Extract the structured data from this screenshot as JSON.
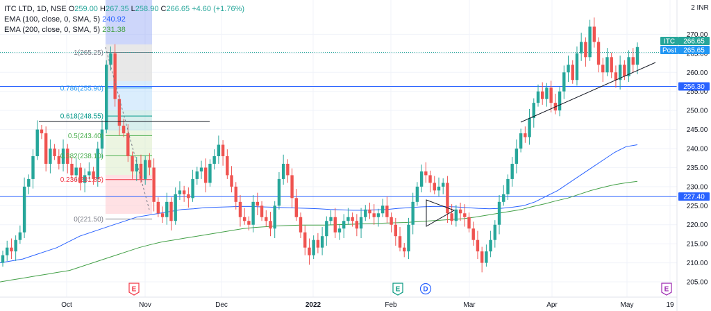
{
  "header": {
    "symbol": "ITC LTD, 1D, NSE",
    "open_label": "O",
    "open": "259.00",
    "high_label": "H",
    "high": "267.35",
    "low_label": "L",
    "low": "258.90",
    "close_label": "C",
    "close": "266.65",
    "change": "+4.60 (+1.76%)",
    "ema100_label": "EMA (100, close, 0, SMA, 5)",
    "ema100_value": "240.92",
    "ema200_label": "EMA (200, close, 0, SMA, 5)",
    "ema200_value": "231.38"
  },
  "currency": "INR",
  "colors": {
    "up": "#26a69a",
    "down": "#ef5350",
    "ema100": "#2962ff",
    "ema200": "#43a047",
    "hline": "#2962ff",
    "grid": "#f0f3fa"
  },
  "price_labels": [
    {
      "text": "ITC",
      "value": "266.65",
      "color": "#26a69a"
    },
    {
      "text": "Post",
      "value": "265.65",
      "color": "#2196f3"
    },
    {
      "text": "",
      "value": "256.30",
      "color": "#2962ff"
    },
    {
      "text": "",
      "value": "227.40",
      "color": "#2962ff"
    }
  ],
  "fib_levels": [
    {
      "label": "1(265.25)",
      "value": 265.25,
      "color": "#787b86"
    },
    {
      "label": "0.786(255.90)",
      "value": 255.9,
      "color": "#2196f3"
    },
    {
      "label": "0.618(248.55)",
      "value": 248.55,
      "color": "#009688"
    },
    {
      "label": "0.5(243.40)",
      "value": 243.4,
      "color": "#4caf50"
    },
    {
      "label": "0.382(238.10)",
      "value": 238.1,
      "color": "#4caf50"
    },
    {
      "label": "0.236(231.85)",
      "value": 231.85,
      "color": "#f23645"
    },
    {
      "label": "0(221.50)",
      "value": 221.5,
      "color": "#787b86"
    }
  ],
  "event_markers": [
    {
      "letter": "E",
      "color": "#f23645",
      "date": "Nov 1"
    },
    {
      "letter": "E",
      "color": "#089981",
      "date": "Feb 3"
    },
    {
      "letter": "D",
      "color": "#2962ff",
      "date": "Feb 24"
    },
    {
      "letter": "E",
      "color": "#9c27b0",
      "date": "May 19"
    }
  ],
  "chart_data": {
    "type": "candlestick",
    "x_labels": [
      "Oct",
      "Nov",
      "Dec",
      "2022",
      "Feb",
      "Mar",
      "Apr",
      "May",
      "19"
    ],
    "y_ticks": [
      205,
      210,
      215,
      220,
      225,
      230,
      235,
      240,
      245,
      250,
      255,
      260,
      265,
      270
    ],
    "ylim": [
      201,
      279
    ],
    "candles": [
      [
        210,
        212
      ],
      [
        212,
        214
      ],
      [
        214,
        213
      ],
      [
        213,
        216
      ],
      [
        216,
        218
      ],
      [
        218,
        230
      ],
      [
        230,
        232
      ],
      [
        232,
        238
      ],
      [
        238,
        245
      ],
      [
        245,
        244
      ],
      [
        244,
        236
      ],
      [
        236,
        240
      ],
      [
        240,
        238
      ],
      [
        238,
        236
      ],
      [
        236,
        240
      ],
      [
        240,
        236
      ],
      [
        236,
        233
      ],
      [
        233,
        235
      ],
      [
        235,
        231
      ],
      [
        231,
        233
      ],
      [
        233,
        234
      ],
      [
        234,
        232
      ],
      [
        232,
        240
      ],
      [
        240,
        245
      ],
      [
        245,
        262
      ],
      [
        262,
        265
      ],
      [
        265,
        253
      ],
      [
        253,
        246
      ],
      [
        246,
        244
      ],
      [
        244,
        238
      ],
      [
        238,
        234
      ],
      [
        234,
        236
      ],
      [
        236,
        232
      ],
      [
        232,
        237
      ],
      [
        237,
        235
      ],
      [
        235,
        226
      ],
      [
        226,
        223
      ],
      [
        223,
        222
      ],
      [
        222,
        226
      ],
      [
        226,
        221
      ],
      [
        221,
        228
      ],
      [
        228,
        229
      ],
      [
        229,
        228
      ],
      [
        228,
        227
      ],
      [
        227,
        232
      ],
      [
        232,
        234
      ],
      [
        234,
        235
      ],
      [
        235,
        231
      ],
      [
        231,
        236
      ],
      [
        236,
        238
      ],
      [
        238,
        241
      ],
      [
        241,
        238
      ],
      [
        238,
        233
      ],
      [
        233,
        230
      ],
      [
        230,
        226
      ],
      [
        226,
        222
      ],
      [
        222,
        221
      ],
      [
        221,
        220
      ],
      [
        220,
        226
      ],
      [
        226,
        225
      ],
      [
        225,
        222
      ],
      [
        222,
        221
      ],
      [
        221,
        219
      ],
      [
        219,
        225
      ],
      [
        225,
        232
      ],
      [
        232,
        236
      ],
      [
        236,
        233
      ],
      [
        233,
        227
      ],
      [
        227,
        222
      ],
      [
        222,
        218
      ],
      [
        218,
        214
      ],
      [
        214,
        212
      ],
      [
        212,
        216
      ],
      [
        216,
        214
      ],
      [
        214,
        217
      ],
      [
        217,
        221
      ],
      [
        221,
        222
      ],
      [
        222,
        218
      ],
      [
        218,
        219
      ],
      [
        219,
        221
      ],
      [
        221,
        222
      ],
      [
        222,
        221
      ],
      [
        221,
        219
      ],
      [
        219,
        222
      ],
      [
        222,
        224
      ],
      [
        224,
        223
      ],
      [
        223,
        222
      ],
      [
        222,
        223
      ],
      [
        223,
        225
      ],
      [
        225,
        222
      ],
      [
        222,
        220
      ],
      [
        220,
        217
      ],
      [
        217,
        214
      ],
      [
        214,
        213
      ],
      [
        213,
        220
      ],
      [
        220,
        226
      ],
      [
        226,
        230
      ],
      [
        230,
        234
      ],
      [
        234,
        233
      ],
      [
        233,
        231
      ],
      [
        231,
        229
      ],
      [
        229,
        230
      ],
      [
        230,
        231
      ],
      [
        231,
        223
      ],
      [
        223,
        221
      ],
      [
        221,
        224
      ],
      [
        224,
        223
      ],
      [
        223,
        222
      ],
      [
        222,
        219
      ],
      [
        219,
        216
      ],
      [
        216,
        213
      ],
      [
        213,
        210
      ],
      [
        210,
        213
      ],
      [
        213,
        216
      ],
      [
        216,
        220
      ],
      [
        220,
        226
      ],
      [
        226,
        228
      ],
      [
        228,
        232
      ],
      [
        232,
        236
      ],
      [
        236,
        240
      ],
      [
        240,
        244
      ],
      [
        244,
        243
      ],
      [
        243,
        248
      ],
      [
        248,
        252
      ],
      [
        252,
        255
      ],
      [
        255,
        253
      ],
      [
        253,
        256
      ],
      [
        256,
        252
      ],
      [
        252,
        250
      ],
      [
        250,
        255
      ],
      [
        255,
        260
      ],
      [
        260,
        262
      ],
      [
        262,
        258
      ],
      [
        258,
        265
      ],
      [
        265,
        268
      ],
      [
        268,
        264
      ],
      [
        264,
        272
      ],
      [
        272,
        268
      ],
      [
        268,
        262
      ],
      [
        262,
        260
      ],
      [
        260,
        264
      ],
      [
        264,
        260
      ],
      [
        260,
        258
      ],
      [
        258,
        262
      ],
      [
        262,
        259
      ],
      [
        259,
        264
      ],
      [
        264,
        262
      ],
      [
        262,
        266.65
      ]
    ],
    "ema100": [
      210,
      210.5,
      211,
      212,
      213,
      214,
      215.5,
      217,
      218,
      219,
      220,
      221,
      222,
      222.5,
      223,
      223.5,
      224,
      224.2,
      224.5,
      224.6,
      224.7,
      224.8,
      224.8,
      224.7,
      224.6,
      224.5,
      224.4,
      224.3,
      224.2,
      224,
      223.9,
      223.8,
      223.8,
      223.9,
      224,
      224.3,
      224.5,
      224.7,
      224.8,
      224.8,
      224.7,
      224.5,
      224.3,
      224.2,
      224.3,
      224.6,
      225,
      226,
      227.5,
      229,
      231,
      233,
      235,
      237,
      239,
      240.5,
      241
    ],
    "ema200": [
      205,
      205.5,
      206,
      206.5,
      207,
      207.5,
      208,
      209,
      210,
      211,
      212,
      213,
      214,
      214.8,
      215.5,
      216,
      216.5,
      217,
      217.5,
      218,
      218.5,
      219,
      219.3,
      219.5,
      219.7,
      219.8,
      219.9,
      219.9,
      219.9,
      220,
      220.1,
      220.2,
      220.3,
      220.4,
      220.5,
      220.6,
      220.8,
      221,
      221.2,
      221.4,
      221.6,
      222,
      222.5,
      223,
      223.5,
      224,
      224.8,
      225.5,
      226.3,
      227,
      228,
      229,
      229.8,
      230.5,
      231,
      231.38
    ]
  }
}
